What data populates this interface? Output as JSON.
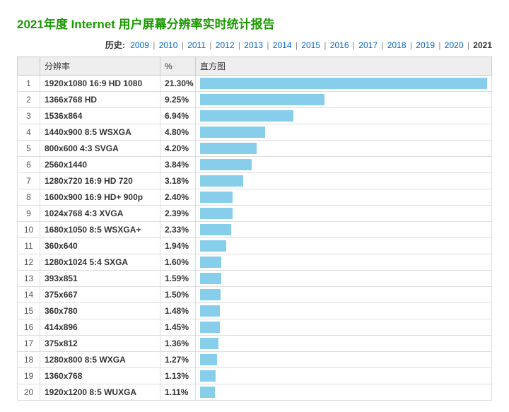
{
  "title": "2021年度 Internet 用户屏幕分辨率实时统计报告",
  "history": {
    "label": "历史:",
    "years": [
      "2009",
      "2010",
      "2011",
      "2012",
      "2013",
      "2014",
      "2015",
      "2016",
      "2017",
      "2018",
      "2019",
      "2020"
    ],
    "current_year": "2021"
  },
  "table": {
    "headers": {
      "resolution": "分辨率",
      "percent": "%",
      "histogram": "直方图"
    },
    "max_percent": 21.3,
    "bar_color": "#87ceeb",
    "header_bg": "#eeeeee",
    "border_color": "#dddddd",
    "rows": [
      {
        "idx": 1,
        "resolution": "1920x1080 16:9 HD 1080",
        "percent": 21.3
      },
      {
        "idx": 2,
        "resolution": "1366x768 HD",
        "percent": 9.25
      },
      {
        "idx": 3,
        "resolution": "1536x864",
        "percent": 6.94
      },
      {
        "idx": 4,
        "resolution": "1440x900 8:5 WSXGA",
        "percent": 4.8
      },
      {
        "idx": 5,
        "resolution": "800x600 4:3 SVGA",
        "percent": 4.2
      },
      {
        "idx": 6,
        "resolution": "2560x1440",
        "percent": 3.84
      },
      {
        "idx": 7,
        "resolution": "1280x720 16:9 HD 720",
        "percent": 3.18
      },
      {
        "idx": 8,
        "resolution": "1600x900 16:9 HD+ 900p",
        "percent": 2.4
      },
      {
        "idx": 9,
        "resolution": "1024x768 4:3 XVGA",
        "percent": 2.39
      },
      {
        "idx": 10,
        "resolution": "1680x1050 8:5 WSXGA+",
        "percent": 2.33
      },
      {
        "idx": 11,
        "resolution": "360x640",
        "percent": 1.94
      },
      {
        "idx": 12,
        "resolution": "1280x1024 5:4 SXGA",
        "percent": 1.6
      },
      {
        "idx": 13,
        "resolution": "393x851",
        "percent": 1.59
      },
      {
        "idx": 14,
        "resolution": "375x667",
        "percent": 1.5
      },
      {
        "idx": 15,
        "resolution": "360x780",
        "percent": 1.48
      },
      {
        "idx": 16,
        "resolution": "414x896",
        "percent": 1.45
      },
      {
        "idx": 17,
        "resolution": "375x812",
        "percent": 1.36
      },
      {
        "idx": 18,
        "resolution": "1280x800 8:5 WXGA",
        "percent": 1.27
      },
      {
        "idx": 19,
        "resolution": "1360x768",
        "percent": 1.13
      },
      {
        "idx": 20,
        "resolution": "1920x1200 8:5 WUXGA",
        "percent": 1.11
      }
    ]
  }
}
